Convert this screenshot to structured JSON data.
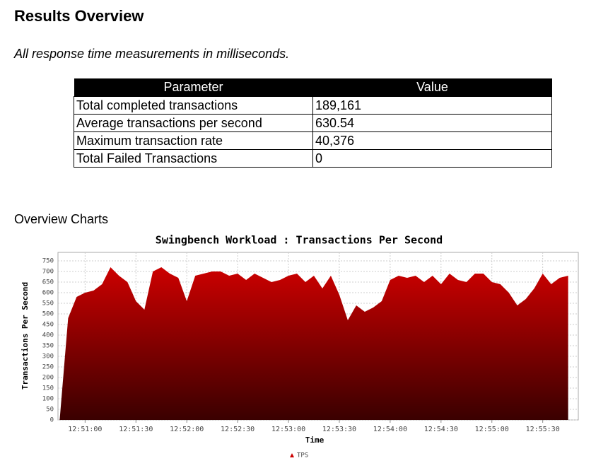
{
  "header": {
    "title": "Results Overview",
    "subtitle": "All response time measurements in milliseconds."
  },
  "table": {
    "columns": [
      "Parameter",
      "Value"
    ],
    "rows": [
      [
        "Total completed transactions",
        "189,161"
      ],
      [
        "Average transactions per second",
        "630.54"
      ],
      [
        "Maximum transaction rate",
        "40,376"
      ],
      [
        "Total Failed Transactions",
        "0"
      ]
    ]
  },
  "section": {
    "title": "Overview Charts"
  },
  "chart_data": {
    "type": "area",
    "title": "Swingbench Workload : Transactions Per Second",
    "x_label": "Time",
    "y_label": "Transactions Per Second",
    "x": [
      "12:50:45",
      "12:50:50",
      "12:50:55",
      "12:51:00",
      "12:51:05",
      "12:51:10",
      "12:51:15",
      "12:51:20",
      "12:51:25",
      "12:51:30",
      "12:51:35",
      "12:51:40",
      "12:51:45",
      "12:51:50",
      "12:51:55",
      "12:52:00",
      "12:52:05",
      "12:52:10",
      "12:52:15",
      "12:52:20",
      "12:52:25",
      "12:52:30",
      "12:52:35",
      "12:52:40",
      "12:52:45",
      "12:52:50",
      "12:52:55",
      "12:53:00",
      "12:53:05",
      "12:53:10",
      "12:53:15",
      "12:53:20",
      "12:53:25",
      "12:53:30",
      "12:53:35",
      "12:53:40",
      "12:53:45",
      "12:53:50",
      "12:53:55",
      "12:54:00",
      "12:54:05",
      "12:54:10",
      "12:54:15",
      "12:54:20",
      "12:54:25",
      "12:54:30",
      "12:54:35",
      "12:54:40",
      "12:54:45",
      "12:54:50",
      "12:54:55",
      "12:55:00",
      "12:55:05",
      "12:55:10",
      "12:55:15",
      "12:55:20",
      "12:55:25",
      "12:55:30",
      "12:55:35",
      "12:55:40",
      "12:55:45"
    ],
    "series": [
      {
        "name": "TPS",
        "color": "#cc0000",
        "values": [
          0,
          480,
          580,
          600,
          610,
          640,
          720,
          680,
          650,
          560,
          520,
          700,
          720,
          690,
          670,
          560,
          680,
          690,
          700,
          700,
          680,
          690,
          660,
          690,
          670,
          650,
          660,
          680,
          690,
          650,
          680,
          620,
          680,
          590,
          470,
          540,
          510,
          530,
          560,
          660,
          680,
          670,
          680,
          650,
          680,
          640,
          690,
          660,
          650,
          690,
          690,
          650,
          640,
          600,
          540,
          570,
          620,
          690,
          640,
          670,
          680
        ]
      }
    ],
    "xlim": [
      "12:50:44",
      "12:55:51"
    ],
    "xticks": [
      "12:51:00",
      "12:51:30",
      "12:52:00",
      "12:52:30",
      "12:53:00",
      "12:53:30",
      "12:54:00",
      "12:54:30",
      "12:55:00",
      "12:55:30"
    ],
    "ylim": [
      0,
      790
    ],
    "yticks": [
      0,
      50,
      100,
      150,
      200,
      250,
      300,
      350,
      400,
      450,
      500,
      550,
      600,
      650,
      700,
      750
    ],
    "grid": true,
    "legend": "bottom"
  }
}
